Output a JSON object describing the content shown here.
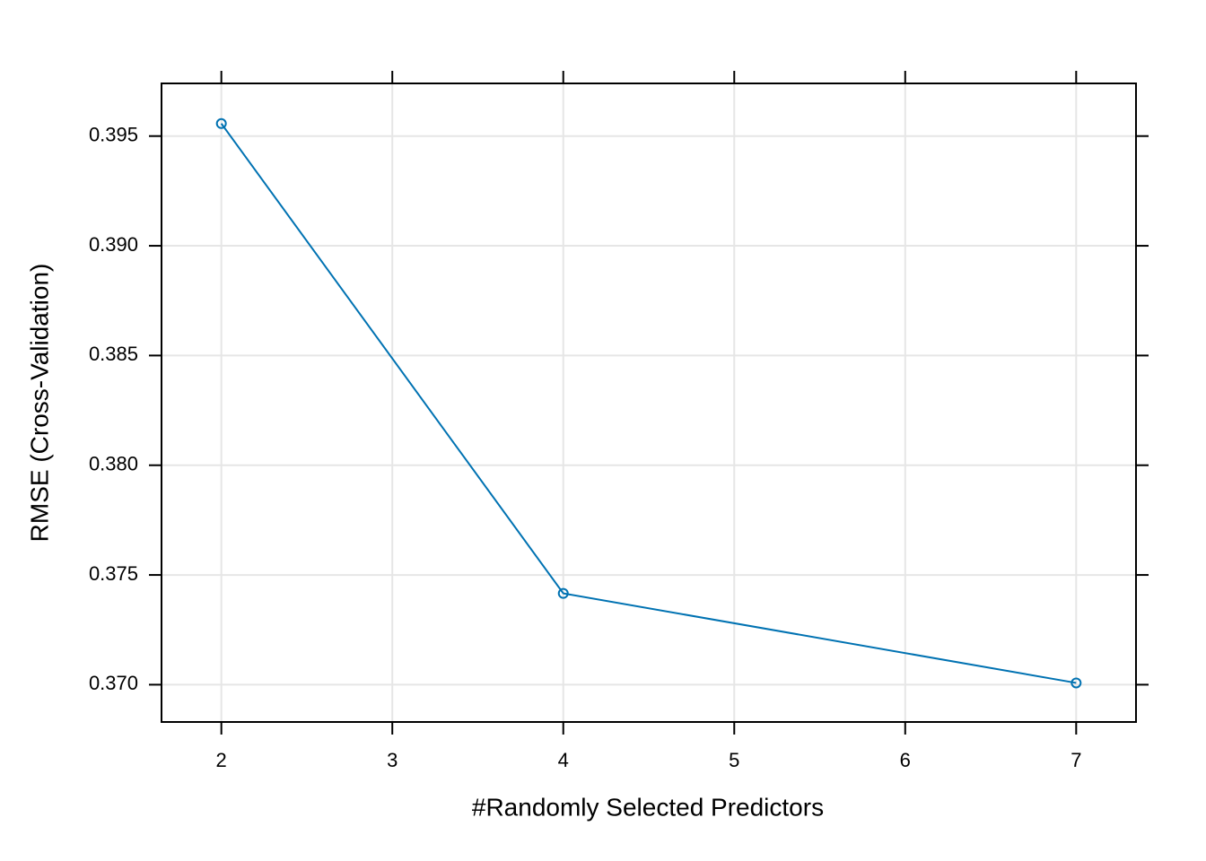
{
  "chart_data": {
    "type": "line",
    "x": [
      2,
      4,
      7
    ],
    "series": [
      {
        "color": "#0072b2",
        "values": [
          0.39557,
          0.37416,
          0.37008
        ]
      }
    ],
    "xlabel": "#Randomly Selected Predictors",
    "ylabel": "RMSE (Cross-Validation)",
    "xlim": [
      1.65,
      7.35
    ],
    "xticks": [
      2,
      3,
      4,
      5,
      6,
      7
    ],
    "ylim": [
      0.3683,
      0.3974
    ],
    "yticks": [
      {
        "value": 0.37,
        "label": "0.370"
      },
      0.375,
      {
        "value": 0.38,
        "label": "0.380"
      },
      0.385,
      {
        "value": 0.39,
        "label": "0.390"
      },
      0.395
    ],
    "grid": true
  }
}
